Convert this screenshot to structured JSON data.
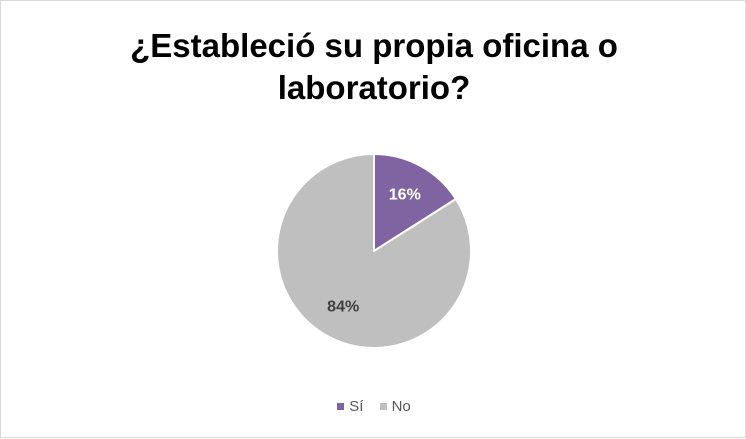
{
  "chart_data": {
    "type": "pie",
    "title_lines": [
      "¿Estableció su propia oficina o",
      "laboratorio?"
    ],
    "slices": [
      {
        "label": "Sí",
        "value": 16,
        "display": "16%",
        "color": "#8064a2",
        "label_color": "#ffffff"
      },
      {
        "label": "No",
        "value": 84,
        "display": "84%",
        "color": "#bfbfbf",
        "label_color": "#404040"
      }
    ],
    "start_angle_deg": 0,
    "direction": "clockwise",
    "legend_position": "bottom"
  }
}
